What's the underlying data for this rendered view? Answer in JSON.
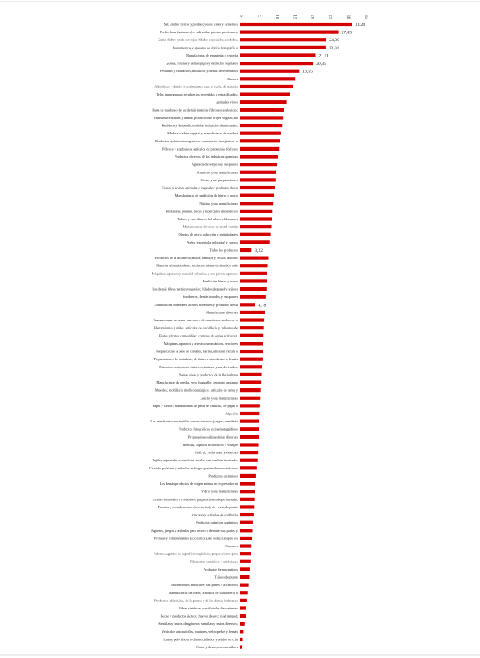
{
  "chart_data": {
    "type": "bar",
    "orientation": "horizontal",
    "title": "",
    "xlabel": "",
    "ylabel": "",
    "xlim": [
      0,
      35
    ],
    "x_ticks": [
      "0",
      "5",
      "10",
      "15",
      "20",
      "25",
      "30",
      "35"
    ],
    "x_tick_values": [
      0,
      5,
      10,
      15,
      20,
      25,
      30,
      35
    ],
    "axis_position": "top",
    "grid": false,
    "legend": "none",
    "colors": {
      "bar": "#d40000"
    },
    "categories": [
      "Sal; azufre; tierras y piedras; yesos, cales y cementos",
      "Perlas finas (naturales) o cultivadas, piedras preciosas o",
      "Guata, fieltro y tela sin tejer; hilados especiales; cordeles,",
      "Instrumentos y aparatos de óptica, fotografía o",
      "Manufacturas de espartería o cestería",
      "Gomas, resinas y demás jugos y extractos vegetales",
      "Pescados y crustáceos, moluscos y demás invertebrados",
      "Abonos",
      "Alfombras y demás revestimientos para el suelo, de materia",
      "Telas impregnadas, recubiertas, revestidas o estratificadas;",
      "Animales vivos",
      "Pasta de madera o de las demás materias fibrosas celulósicas;",
      "Materias trenzables y demás productos de origen vegetal, no",
      "Residuos y desperdicios de las industrias alimentarias;",
      "Madera, carbón vegetal y manufacturas de madera",
      "Productos químicos inorgánicos; compuestos inorgánicos u",
      "Pólvora y explosivos; artículos de pirotecnia; fósforos",
      "Productos diversos de las industrias químicas",
      "Aparatos de relojería y sus partes",
      "Aluminio y sus manufacturas",
      "Cacao y sus preparaciones",
      "Grasas y aceites animales o vegetales; productos de su",
      "Manufacturas de fundición, de hierro o acero",
      "Plástico y sus manufacturas",
      "Hortalizas, plantas, raíces y tubérculos alimenticios",
      "Tabaco y sucedáneos del tabaco elaborados",
      "Manufacturas diversas de metal común",
      "Objetos de arte o colección y antigüedades",
      "Pieles (excepto la peletería) y cueros",
      "Todos los productos",
      "Productos de la molinería; malta; almidón y fécula; inulina;",
      "Materias albuminoideas; productos a base de almidón o de",
      "Máquinas, aparatos y material eléctrico, y sus partes; aparatos",
      "Fundición, hierro y acero",
      "Las demás fibras textiles vegetales; hilados de papel y tejidos",
      "Sombreros, demás tocados, y sus partes",
      "Combustibles minerales, aceites minerales y productos de su",
      "Manufacturas diversas",
      "Preparaciones de carne, pescado o de crustáceos, moluscos o",
      "Herramientas y útiles, artículos de cuchillería y cubiertos de",
      "Frutas y frutos comestibles; cortezas de agrios (cítricos),",
      "Máquinas, aparatos y artefactos mecánicos, reactores",
      "Preparaciones a base de cereales, harina, almidón, fécula o",
      "Preparaciones de hortalizas, de frutas u otros frutos o demás",
      "Extractos curtientes o tintóreos; taninos y sus derivados;",
      "Plantas vivas y productos de la floricultura",
      "Manufacturas de piedra, yeso fraguable, cemento, amianto",
      "Muebles; mobiliario medicoquirúrgico; artículos de cama y",
      "Caucho y sus manufacturas",
      "Papel y cartón; manufacturas de pasta de celulosa, de papel o",
      "Algodón",
      "Los demás artículos textiles confeccionados; juegos; prendería",
      "Productos fotográficos o cinematográficos",
      "Preparaciones alimenticias diversas",
      "Bebidas, líquidos alcohólicos y vinagre",
      "Café, té, yerba mate y especias",
      "Tejidos especiales; superficies textiles con mechón insertado;",
      "Calzado, polainas y artículos análogos; partes de estos artículos",
      "Productos cerámicos",
      "Los demás productos de origen animal no expresados ni",
      "Vidrio y sus manufacturas",
      "Aceites esenciales y resinoides; preparaciones de perfumería,",
      "Prendas y complementos (accesorios), de vestir, de punto",
      "Azúcares y artículos de confitería",
      "Productos químicos orgánicos",
      "Juguetes, juegos y artículos para recreo o deporte; sus partes y",
      "Prendas y complementos (accesorios), de vestir, excepto los",
      "Cereales",
      "Jabones, agentes de superficie orgánicos, preparaciones para",
      "Filamentos sintéticos o artificiales",
      "Productos farmacéuticos",
      "Tejidos de punto",
      "Instrumentos musicales; sus partes y accesorios",
      "Manufacturas de cuero; artículos de talabartería o",
      "Productos editoriales, de la prensa y de las demás industrias",
      "Fibras sintéticas o artificiales discontinuas",
      "Leche y productos lácteos; huevos de ave; miel natural;",
      "Semillas y frutos oleaginosos; semillas y frutos diversos;",
      "Vehículos automóviles, tractores, velocípedos y demás",
      "Lana y pelo fino u ordinario; hilados y tejidos de crin",
      "Carne y despojos comestibles"
    ],
    "values": [
      31.28,
      27.45,
      24.0,
      23.91,
      21.11,
      20.35,
      16.55,
      15.4,
      14.8,
      14.0,
      13.0,
      12.4,
      12.0,
      11.8,
      11.5,
      11.2,
      10.9,
      10.6,
      10.4,
      10.1,
      9.9,
      9.7,
      9.5,
      9.3,
      9.1,
      8.9,
      8.7,
      8.5,
      8.3,
      3.22,
      8.0,
      7.8,
      7.6,
      7.5,
      7.4,
      7.2,
      4.18,
      7.0,
      6.8,
      6.7,
      6.6,
      6.5,
      6.4,
      6.3,
      6.1,
      6.0,
      5.9,
      5.8,
      5.7,
      5.6,
      5.5,
      5.4,
      5.3,
      5.2,
      5.1,
      5.0,
      4.9,
      4.7,
      4.5,
      4.3,
      4.2,
      4.0,
      3.9,
      3.8,
      3.6,
      3.5,
      3.4,
      3.2,
      3.0,
      2.9,
      2.7,
      2.6,
      2.4,
      2.2,
      2.0,
      1.8,
      1.6,
      1.3,
      1.0,
      0.8,
      0.5
    ],
    "data_labels": {
      "0": "31,28",
      "1": "27,45",
      "2": "24,00",
      "3": "23,91",
      "4": "21,11",
      "5": "20,35",
      "6": "16,55",
      "29": "3,22",
      "36": "4,18"
    }
  }
}
